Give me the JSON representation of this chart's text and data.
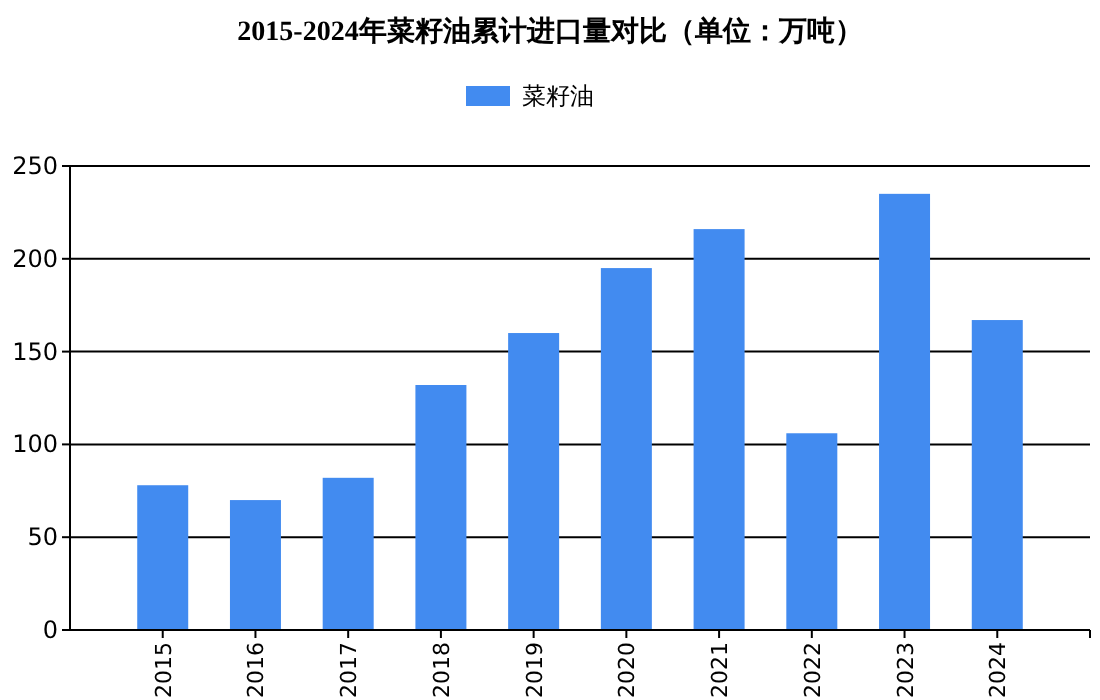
{
  "chart_data": {
    "type": "bar",
    "title": "2015-2024年菜籽油累计进口量对比（单位：万吨）",
    "categories": [
      "2015",
      "2016",
      "2017",
      "2018",
      "2019",
      "2020",
      "2021",
      "2022",
      "2023",
      "2024"
    ],
    "series": [
      {
        "name": "菜籽油",
        "color": "#428bf0",
        "values": [
          78,
          70,
          82,
          132,
          160,
          195,
          216,
          106,
          235,
          167
        ]
      }
    ],
    "ylim": [
      0,
      250
    ],
    "yticks": [
      0,
      50,
      100,
      150,
      200,
      250
    ],
    "grid": "y",
    "legend": "top"
  }
}
